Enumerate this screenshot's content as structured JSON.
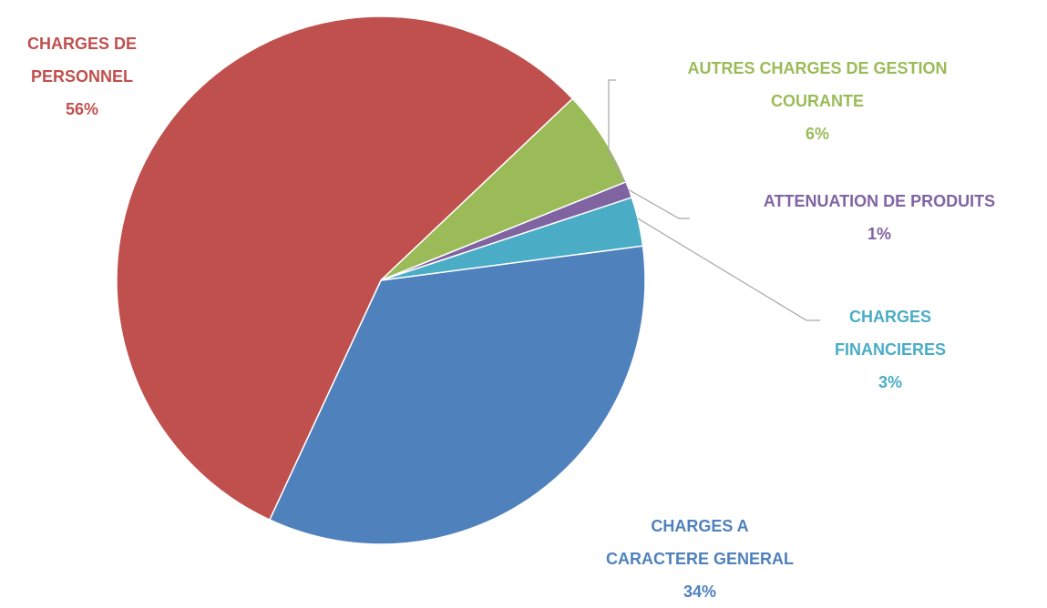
{
  "chart_data": {
    "type": "pie",
    "categories": [
      "CHARGES A CARACTERE GENERAL",
      "CHARGES DE PERSONNEL",
      "AUTRES CHARGES DE GESTION COURANTE",
      "ATTENUATION DE PRODUITS",
      "CHARGES FINANCIERES"
    ],
    "values": [
      34,
      56,
      6,
      1,
      3
    ],
    "value_labels": [
      "34%",
      "56%",
      "6%",
      "1%",
      "3%"
    ],
    "colors": [
      "#4f81bd",
      "#c0504d",
      "#9bbb59",
      "#8064a2",
      "#4bacc6"
    ]
  }
}
